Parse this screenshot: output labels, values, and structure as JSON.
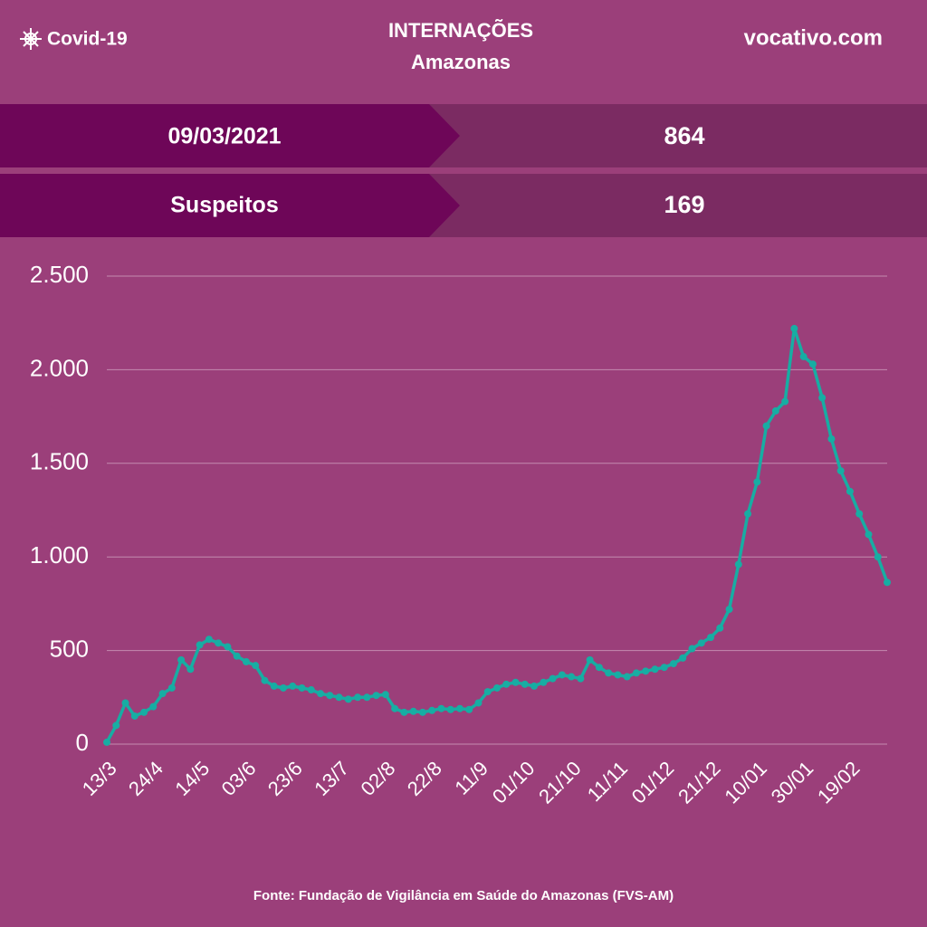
{
  "header": {
    "tag": "Covid-19",
    "title": "INTERNAÇÕES",
    "subtitle": "Amazonas",
    "site": "vocativo.com"
  },
  "summary": {
    "date": "09/03/2021",
    "total": 864,
    "suspects_label": "Suspeitos",
    "suspects": 169
  },
  "chart_data": {
    "type": "line",
    "categories": [
      "13/3",
      null,
      null,
      null,
      null,
      "24/4",
      null,
      null,
      null,
      null,
      "14/5",
      null,
      null,
      null,
      null,
      "03/6",
      null,
      null,
      null,
      null,
      "23/6",
      null,
      null,
      null,
      null,
      "13/7",
      null,
      null,
      null,
      null,
      "02/8",
      null,
      null,
      null,
      null,
      "22/8",
      null,
      null,
      null,
      null,
      "11/9",
      null,
      null,
      null,
      null,
      "01/10",
      null,
      null,
      null,
      null,
      "21/10",
      null,
      null,
      null,
      null,
      "11/11",
      null,
      null,
      null,
      null,
      "01/12",
      null,
      null,
      null,
      null,
      "21/12",
      null,
      null,
      null,
      null,
      "10/01",
      null,
      null,
      null,
      null,
      "30/01",
      null,
      null,
      null,
      null,
      "19/02",
      null,
      null,
      null,
      null
    ],
    "values": [
      10,
      100,
      220,
      150,
      170,
      200,
      270,
      300,
      450,
      400,
      530,
      560,
      540,
      520,
      470,
      440,
      420,
      340,
      310,
      300,
      310,
      300,
      290,
      270,
      260,
      250,
      240,
      250,
      250,
      260,
      265,
      190,
      170,
      175,
      170,
      180,
      190,
      185,
      190,
      185,
      220,
      280,
      300,
      320,
      330,
      320,
      310,
      330,
      350,
      370,
      360,
      350,
      450,
      410,
      380,
      370,
      360,
      380,
      390,
      400,
      410,
      430,
      460,
      510,
      540,
      570,
      620,
      720,
      960,
      1230,
      1400,
      1700,
      1780,
      1830,
      2220,
      2070,
      2030,
      1850,
      1630,
      1460,
      1350,
      1230,
      1120,
      1000,
      864
    ],
    "color": "#17ada3",
    "ylim": [
      0,
      2500
    ],
    "yticks": [
      0,
      500,
      {
        "value": 1000,
        "label": "1.000"
      },
      {
        "value": 1500,
        "label": "1.500"
      },
      {
        "value": 2000,
        "label": "2.000"
      },
      {
        "value": 2500,
        "label": "2.500"
      }
    ],
    "grid": true
  },
  "source": "Fonte: Fundação de Vigilância em Saúde do Amazonas (FVS-AM)"
}
